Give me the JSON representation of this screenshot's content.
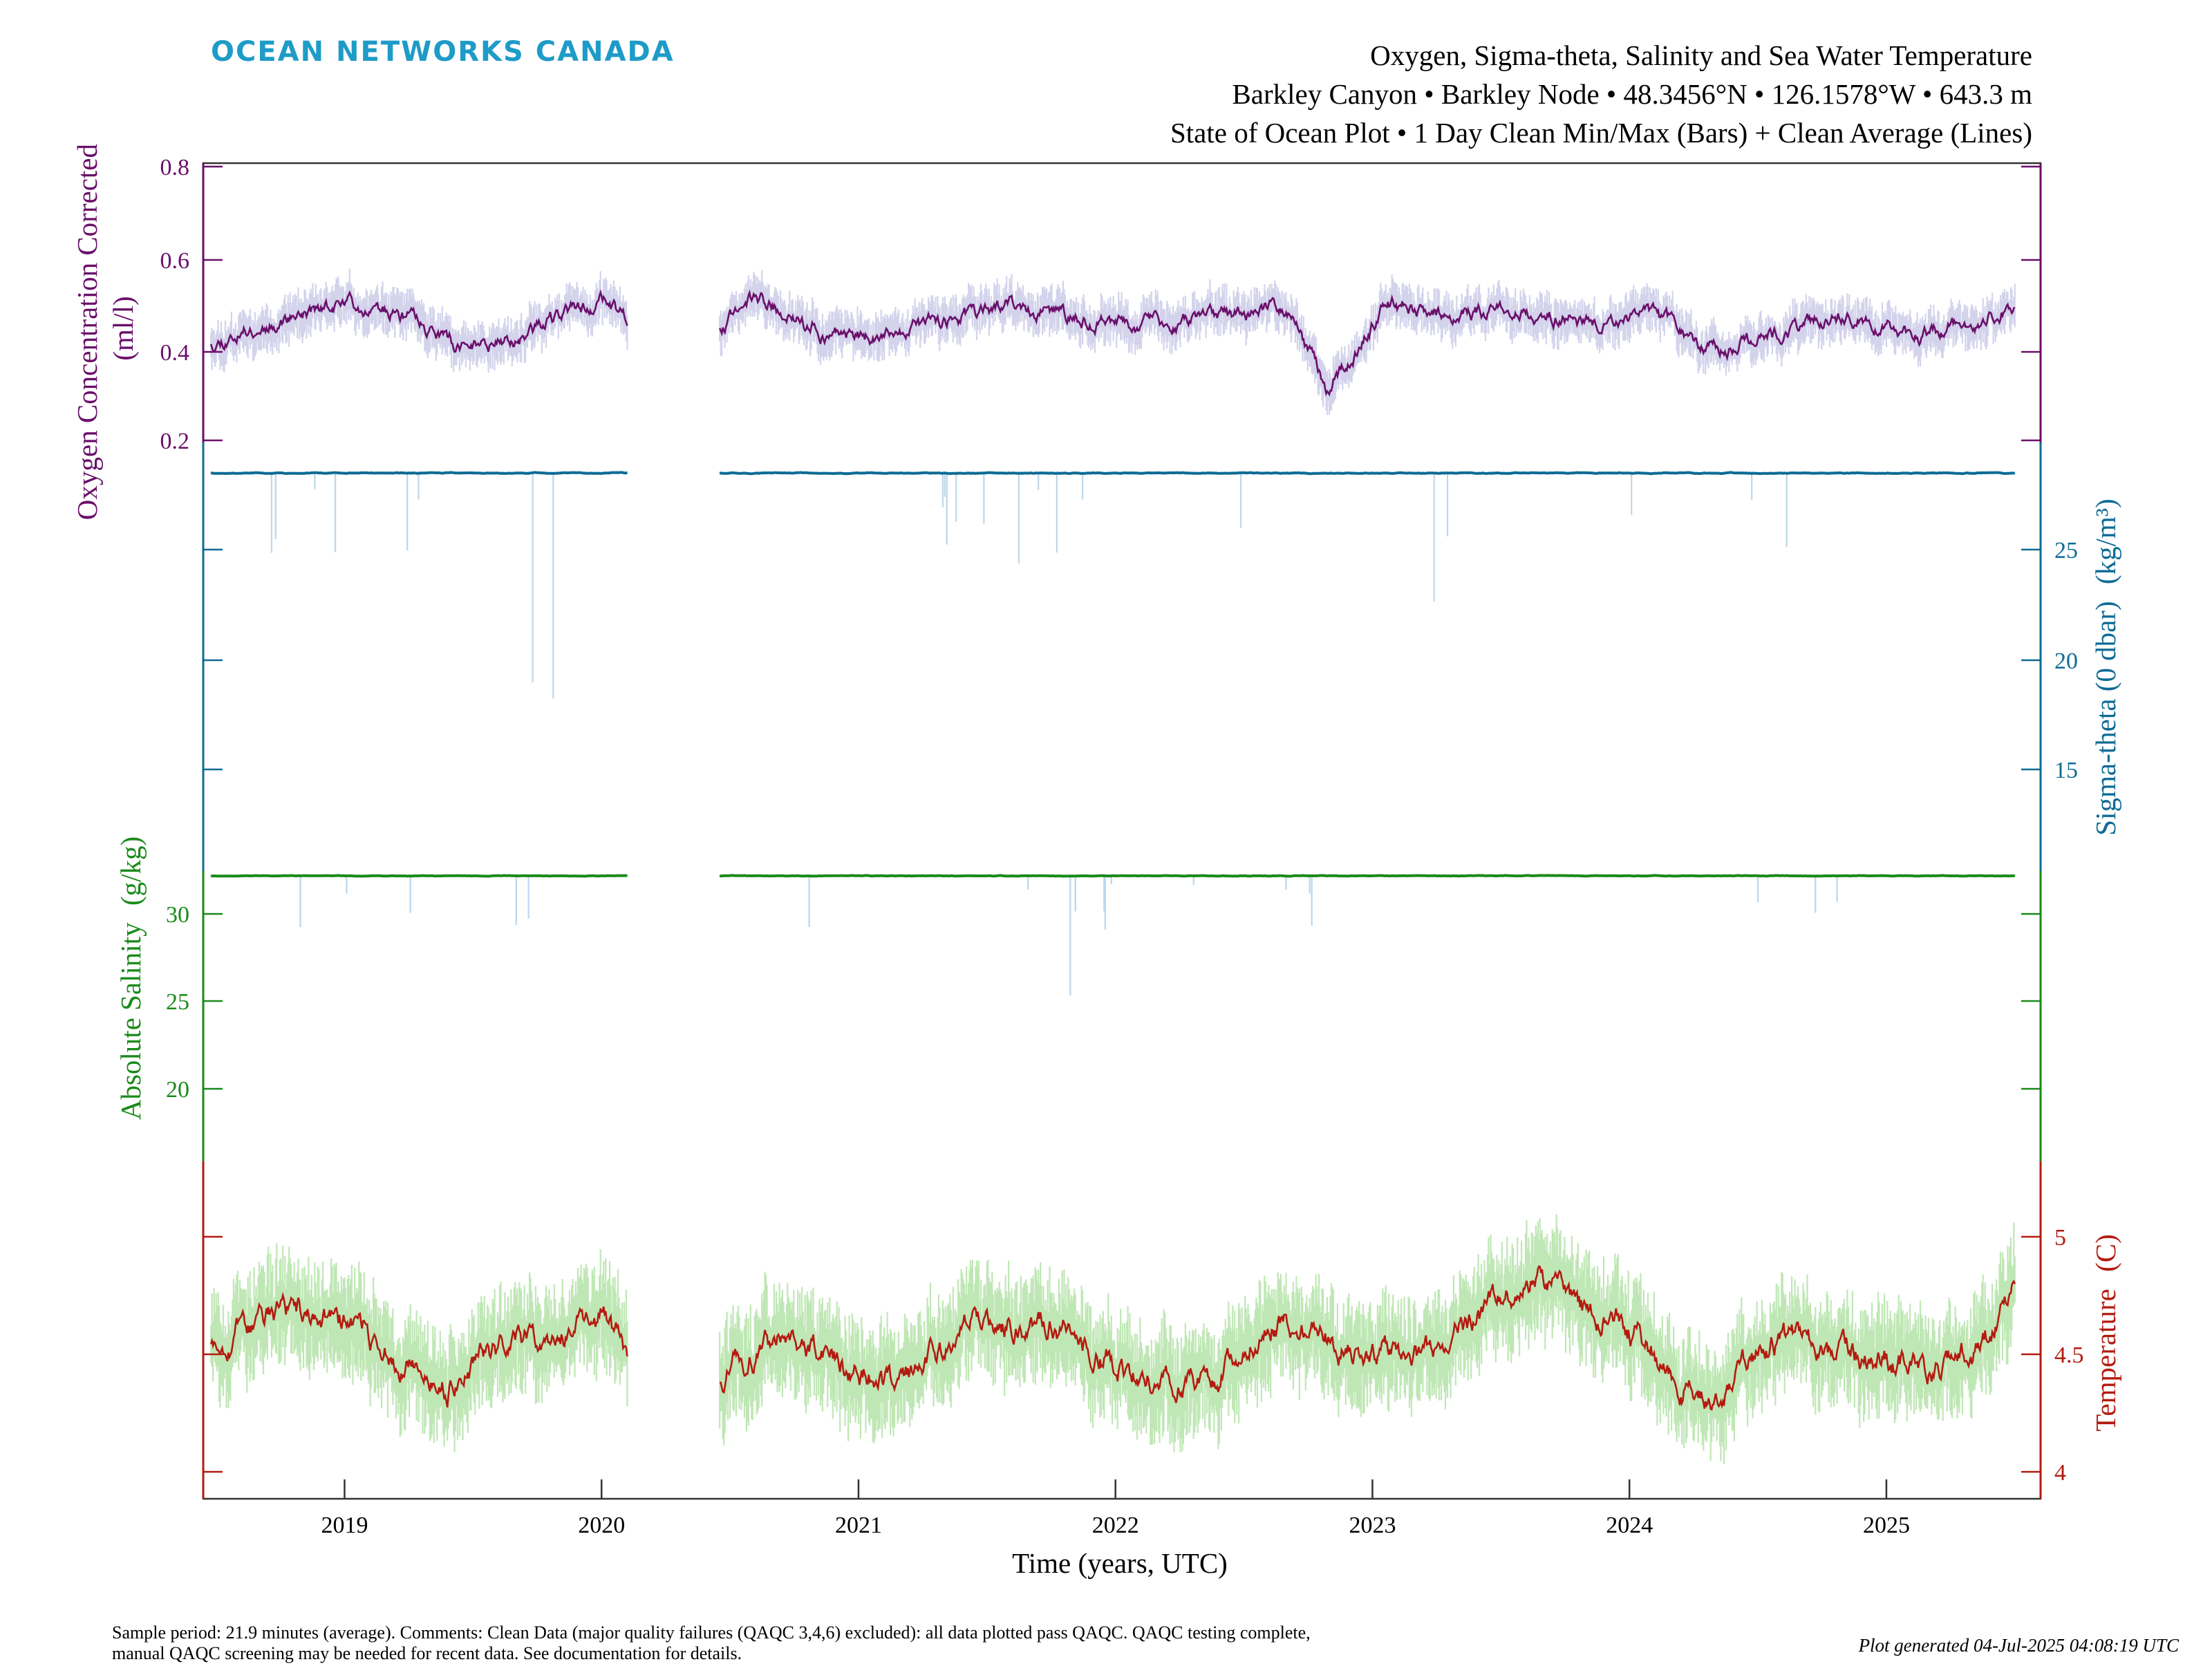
{
  "brand": "OCEAN NETWORKS CANADA",
  "title": {
    "line1": "Oxygen, Sigma-theta, Salinity and Sea Water Temperature",
    "line2": "Barkley Canyon • Barkley Node • 48.3456°N • 126.1578°W • 643.3 m",
    "line3": "State of Ocean Plot • 1 Day Clean Min/Max (Bars) + Clean Average (Lines)"
  },
  "footer": {
    "comment_line1": "Sample period: 21.9 minutes (average). Comments: Clean Data (major quality failures (QAQC 3,4,6) excluded): all data plotted pass QAQC. QAQC testing complete,",
    "comment_line2": "manual QAQC screening may be needed for recent data. See documentation for details.",
    "generated": "Plot generated 04-Jul-2025 04:08:19 UTC"
  },
  "colors": {
    "oxygen": "#6a0f6a",
    "oxygen_band": "#d3d3ec",
    "sigma": "#0e6b95",
    "sigma_band": "#bcd7ea",
    "salinity": "#1a8a1a",
    "salinity_band": "#b9d6ee",
    "temperature": "#b31b10",
    "temperature_band": "#bfe7b5"
  },
  "chart_data": {
    "type": "line",
    "xlabel": "Time (years, UTC)",
    "xlim": [
      2018.45,
      2025.6
    ],
    "x_ticks": [
      "2019",
      "2020",
      "2021",
      "2022",
      "2023",
      "2024",
      "2025"
    ],
    "data_gaps": [
      [
        2020.1,
        2020.45
      ]
    ],
    "data_end": 2025.5,
    "series": [
      {
        "name": "Oxygen Concentration Corrected",
        "unit": "(ml/l)",
        "axis_side": "left",
        "ylim": [
          0.09,
          0.81
        ],
        "y_ticks": [
          "0.2",
          "0.4",
          "0.6",
          "0.8"
        ],
        "anchors_x": [
          2018.48,
          2018.8,
          2019.05,
          2019.3,
          2019.45,
          2019.7,
          2020.0,
          2020.1,
          2020.46,
          2020.6,
          2020.85,
          2021.1,
          2021.3,
          2021.6,
          2021.9,
          2022.2,
          2022.5,
          2022.65,
          2022.82,
          2022.95,
          2023.05,
          2023.3,
          2023.6,
          2023.9,
          2024.1,
          2024.35,
          2024.6,
          2024.85,
          2025.1,
          2025.3,
          2025.5
        ],
        "anchors_y": [
          0.35,
          0.42,
          0.45,
          0.4,
          0.33,
          0.37,
          0.46,
          0.4,
          0.39,
          0.46,
          0.38,
          0.36,
          0.4,
          0.44,
          0.4,
          0.39,
          0.42,
          0.44,
          0.24,
          0.33,
          0.45,
          0.42,
          0.43,
          0.39,
          0.41,
          0.32,
          0.38,
          0.42,
          0.36,
          0.4,
          0.45
        ]
      },
      {
        "name": "Sigma-theta (0 dbar)",
        "unit": "(kg/m³)",
        "axis_side": "right",
        "ylim": [
          11.5,
          28.3
        ],
        "y_ticks": [
          "15",
          "20",
          "25"
        ],
        "anchors_x": [
          2018.48,
          2025.5
        ],
        "anchors_y": [
          27.1,
          27.1
        ]
      },
      {
        "name": "Absolute Salinity",
        "unit": "(g/kg)",
        "axis_side": "left",
        "ylim": [
          16.0,
          34.4
        ],
        "y_ticks": [
          "20",
          "25",
          "30"
        ],
        "anchors_x": [
          2018.48,
          2025.5
        ],
        "anchors_y": [
          34.1,
          34.1
        ]
      },
      {
        "name": "Temperature",
        "unit": "(C)",
        "axis_side": "right",
        "ylim": [
          3.95,
          5.33
        ],
        "y_ticks": [
          "4",
          "4.5",
          "5"
        ],
        "anchors_x": [
          2018.48,
          2018.8,
          2019.05,
          2019.4,
          2019.55,
          2019.8,
          2020.0,
          2020.1,
          2020.46,
          2020.7,
          2020.95,
          2021.15,
          2021.5,
          2021.8,
          2022.1,
          2022.4,
          2022.6,
          2022.9,
          2023.2,
          2023.45,
          2023.65,
          2023.8,
          2024.05,
          2024.3,
          2024.55,
          2024.9,
          2025.2,
          2025.35,
          2025.5
        ],
        "anchors_y": [
          4.6,
          4.72,
          4.65,
          4.4,
          4.55,
          4.6,
          4.68,
          4.55,
          4.45,
          4.6,
          4.5,
          4.4,
          4.7,
          4.65,
          4.45,
          4.45,
          4.7,
          4.55,
          4.52,
          4.72,
          4.88,
          4.72,
          4.6,
          4.35,
          4.6,
          4.52,
          4.5,
          4.55,
          4.78
        ]
      }
    ]
  }
}
